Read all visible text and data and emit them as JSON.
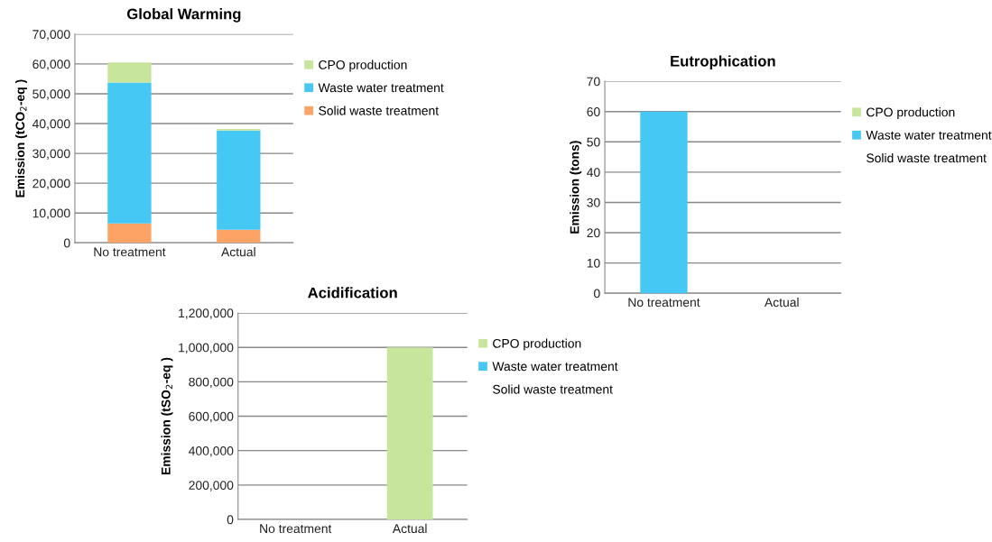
{
  "chart_data": [
    {
      "type": "bar",
      "title": "Global Warming",
      "ylabel": "Emission (tCO$_{2}$-eq )",
      "categories": [
        "No treatment",
        "Actual"
      ],
      "stacked": true,
      "ylim": [
        0,
        70000
      ],
      "yticks": [
        {
          "value": 0,
          "label": "0"
        },
        {
          "value": 10000,
          "label": "10,000"
        },
        {
          "value": 20000,
          "label": "20,000"
        },
        {
          "value": 30000,
          "label": "30,000"
        },
        {
          "value": 40000,
          "label": "40,000"
        },
        {
          "value": 50000,
          "label": "50,000"
        },
        {
          "value": 60000,
          "label": "60,000"
        },
        {
          "value": 70000,
          "label": "70,000"
        }
      ],
      "grid": "y",
      "legend": "right",
      "series": [
        {
          "name": "Solid waste treatment",
          "color": "#fca365",
          "values": [
            6500,
            4400
          ]
        },
        {
          "name": "Waste water treatment",
          "color": "#46c8f4",
          "values": [
            47300,
            33300
          ]
        },
        {
          "name": "CPO production",
          "color": "#c8e69b",
          "values": [
            6700,
            500
          ]
        }
      ]
    },
    {
      "type": "bar",
      "title": "Eutrophication",
      "ylabel": "Emission (tons)",
      "categories": [
        "No treatment",
        "Actual"
      ],
      "stacked": true,
      "ylim": [
        0,
        70
      ],
      "yticks": [
        0,
        10,
        20,
        30,
        40,
        50,
        60,
        70
      ],
      "grid": "y",
      "legend": "right",
      "series": [
        {
          "name": "Solid waste treatment",
          "values": [
            0,
            0
          ]
        },
        {
          "name": "Waste water treatment",
          "color": "#46c8f4",
          "values": [
            60,
            0
          ]
        },
        {
          "name": "CPO production",
          "color": "#c8e69b",
          "values": [
            0,
            0
          ]
        }
      ]
    },
    {
      "type": "bar",
      "title": "Acidification",
      "ylabel": "Emission (tSO$_{2}$-eq )",
      "categories": [
        "No treatment",
        "Actual"
      ],
      "stacked": true,
      "ylim": [
        0,
        1200000
      ],
      "yticks": [
        {
          "value": 0,
          "label": "0"
        },
        {
          "value": 200000,
          "label": "200,000"
        },
        {
          "value": 400000,
          "label": "400,000"
        },
        {
          "value": 600000,
          "label": "600,000"
        },
        {
          "value": 800000,
          "label": "800,000"
        },
        {
          "value": 1000000,
          "label": "1,000,000"
        },
        {
          "value": 1200000,
          "label": "1,200,000"
        }
      ],
      "grid": "y",
      "legend": "right",
      "series": [
        {
          "name": "Solid waste treatment",
          "values": [
            0,
            0
          ]
        },
        {
          "name": "Waste water treatment",
          "color": "#46c8f4",
          "values": [
            0,
            0
          ]
        },
        {
          "name": "CPO production",
          "color": "#c8e69b",
          "values": [
            0,
            1000000
          ]
        }
      ]
    }
  ]
}
